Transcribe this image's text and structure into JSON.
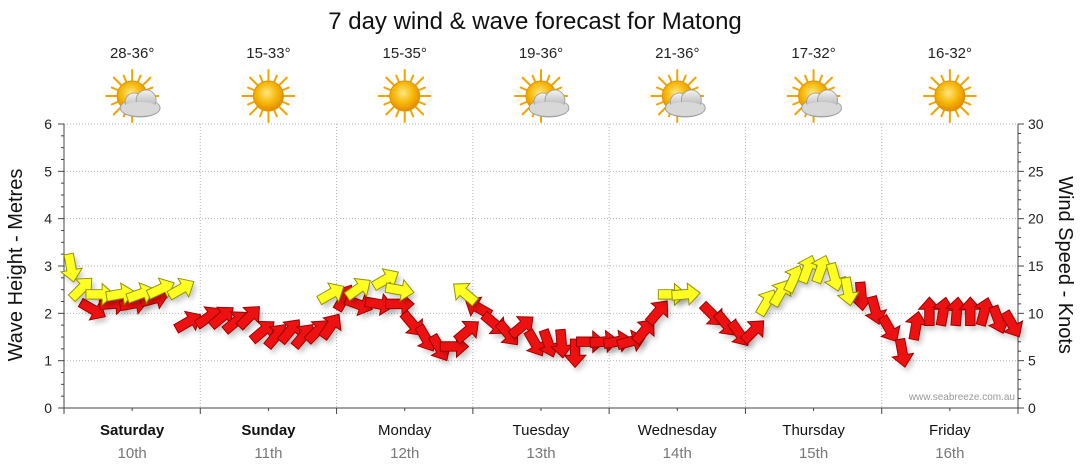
{
  "chart_data": {
    "type": "line",
    "title": "7 day wind & wave forecast for Matong",
    "ylabel_left": "Wave Height - Metres",
    "ylabel_right": "Wind Speed - Knots",
    "ylim_left": [
      0,
      6
    ],
    "ylim_right": [
      0,
      30
    ],
    "yticks_left": [
      "0",
      "1",
      "2",
      "3",
      "4",
      "5",
      "6"
    ],
    "yticks_right": [
      "0",
      "5",
      "10",
      "15",
      "20",
      "25",
      "30"
    ],
    "days": [
      {
        "day": "Saturday",
        "date": "10th",
        "temp": "28-36°",
        "weather": "partly-cloudy",
        "bold": true
      },
      {
        "day": "Sunday",
        "date": "11th",
        "temp": "15-33°",
        "weather": "sunny",
        "bold": true
      },
      {
        "day": "Monday",
        "date": "12th",
        "temp": "15-35°",
        "weather": "sunny",
        "bold": false
      },
      {
        "day": "Tuesday",
        "date": "13th",
        "temp": "19-36°",
        "weather": "partly-cloudy",
        "bold": false
      },
      {
        "day": "Wednesday",
        "date": "14th",
        "temp": "21-36°",
        "weather": "partly-cloudy",
        "bold": false
      },
      {
        "day": "Thursday",
        "date": "15th",
        "temp": "17-32°",
        "weather": "partly-cloudy",
        "bold": false
      },
      {
        "day": "Friday",
        "date": "16th",
        "temp": "16-32°",
        "weather": "sunny",
        "bold": false
      }
    ],
    "series": [
      {
        "name": "Wind Speed - Knots",
        "axis": "right",
        "note": "arrows: t in days from start, speed in knots, dir = compass bearing wind blows toward (deg), color by strength",
        "points": [
          {
            "t": 0.05,
            "speed": 15,
            "dir": 170,
            "color": "yellow"
          },
          {
            "t": 0.12,
            "speed": 12.5,
            "dir": 45,
            "color": "yellow"
          },
          {
            "t": 0.25,
            "speed": 12,
            "dir": 90,
            "color": "yellow"
          },
          {
            "t": 0.4,
            "speed": 12,
            "dir": 80,
            "color": "yellow"
          },
          {
            "t": 0.55,
            "speed": 12,
            "dir": 70,
            "color": "yellow"
          },
          {
            "t": 0.7,
            "speed": 12.5,
            "dir": 65,
            "color": "yellow"
          },
          {
            "t": 0.85,
            "speed": 12.5,
            "dir": 60,
            "color": "yellow"
          },
          {
            "t": 0.2,
            "speed": 10.5,
            "dir": 120,
            "color": "red"
          },
          {
            "t": 0.35,
            "speed": 11,
            "dir": 85,
            "color": "red"
          },
          {
            "t": 0.5,
            "speed": 11,
            "dir": 80,
            "color": "red"
          },
          {
            "t": 0.65,
            "speed": 11.5,
            "dir": 75,
            "color": "red"
          },
          {
            "t": 0.9,
            "speed": 9,
            "dir": 60,
            "color": "red"
          },
          {
            "t": 1.05,
            "speed": 9.5,
            "dir": 55,
            "color": "red"
          },
          {
            "t": 1.15,
            "speed": 9.5,
            "dir": 50,
            "color": "red"
          },
          {
            "t": 1.25,
            "speed": 9,
            "dir": 50,
            "color": "red"
          },
          {
            "t": 1.35,
            "speed": 9.5,
            "dir": 45,
            "color": "red"
          },
          {
            "t": 1.45,
            "speed": 8,
            "dir": 50,
            "color": "red"
          },
          {
            "t": 1.55,
            "speed": 7.5,
            "dir": 40,
            "color": "red"
          },
          {
            "t": 1.65,
            "speed": 8,
            "dir": 40,
            "color": "red"
          },
          {
            "t": 1.75,
            "speed": 7.5,
            "dir": 40,
            "color": "red"
          },
          {
            "t": 1.85,
            "speed": 8,
            "dir": 45,
            "color": "red"
          },
          {
            "t": 1.95,
            "speed": 8.5,
            "dir": 35,
            "color": "red"
          },
          {
            "t": 2.05,
            "speed": 11.5,
            "dir": 30,
            "color": "red"
          },
          {
            "t": 1.95,
            "speed": 12,
            "dir": 60,
            "color": "yellow"
          },
          {
            "t": 2.15,
            "speed": 12.5,
            "dir": 55,
            "color": "yellow"
          },
          {
            "t": 2.35,
            "speed": 13.5,
            "dir": 60,
            "color": "yellow"
          },
          {
            "t": 2.45,
            "speed": 12.5,
            "dir": 100,
            "color": "yellow"
          },
          {
            "t": 2.15,
            "speed": 11,
            "dir": 110,
            "color": "red"
          },
          {
            "t": 2.3,
            "speed": 11,
            "dir": 100,
            "color": "red"
          },
          {
            "t": 2.45,
            "speed": 11,
            "dir": 90,
            "color": "red"
          },
          {
            "t": 2.55,
            "speed": 9,
            "dir": 140,
            "color": "red"
          },
          {
            "t": 2.65,
            "speed": 7.5,
            "dir": 150,
            "color": "red"
          },
          {
            "t": 2.75,
            "speed": 6.5,
            "dir": 150,
            "color": "red"
          },
          {
            "t": 2.85,
            "speed": 6.5,
            "dir": 90,
            "color": "red"
          },
          {
            "t": 2.95,
            "speed": 8,
            "dir": 50,
            "color": "red"
          },
          {
            "t": 3.05,
            "speed": 10.5,
            "dir": 300,
            "color": "red"
          },
          {
            "t": 2.95,
            "speed": 12,
            "dir": 310,
            "color": "yellow"
          },
          {
            "t": 3.15,
            "speed": 9,
            "dir": 130,
            "color": "red"
          },
          {
            "t": 3.25,
            "speed": 8,
            "dir": 140,
            "color": "red"
          },
          {
            "t": 3.35,
            "speed": 8.5,
            "dir": 50,
            "color": "red"
          },
          {
            "t": 3.45,
            "speed": 7,
            "dir": 150,
            "color": "red"
          },
          {
            "t": 3.55,
            "speed": 7,
            "dir": 160,
            "color": "red"
          },
          {
            "t": 3.65,
            "speed": 7,
            "dir": 175,
            "color": "red"
          },
          {
            "t": 3.75,
            "speed": 6,
            "dir": 180,
            "color": "red"
          },
          {
            "t": 3.85,
            "speed": 7,
            "dir": 90,
            "color": "red"
          },
          {
            "t": 3.95,
            "speed": 7,
            "dir": 85,
            "color": "red"
          },
          {
            "t": 4.05,
            "speed": 7,
            "dir": 80,
            "color": "red"
          },
          {
            "t": 4.15,
            "speed": 7,
            "dir": 75,
            "color": "red"
          },
          {
            "t": 4.25,
            "speed": 8,
            "dir": 40,
            "color": "red"
          },
          {
            "t": 4.35,
            "speed": 10,
            "dir": 40,
            "color": "red"
          },
          {
            "t": 4.45,
            "speed": 12,
            "dir": 90,
            "color": "yellow"
          },
          {
            "t": 4.55,
            "speed": 12,
            "dir": 85,
            "color": "yellow"
          },
          {
            "t": 4.75,
            "speed": 10,
            "dir": 135,
            "color": "red"
          },
          {
            "t": 4.85,
            "speed": 9,
            "dir": 140,
            "color": "red"
          },
          {
            "t": 4.95,
            "speed": 8,
            "dir": 145,
            "color": "red"
          },
          {
            "t": 5.05,
            "speed": 8,
            "dir": 45,
            "color": "red"
          },
          {
            "t": 5.15,
            "speed": 11,
            "dir": 30,
            "color": "yellow"
          },
          {
            "t": 5.25,
            "speed": 12,
            "dir": 30,
            "color": "yellow"
          },
          {
            "t": 5.35,
            "speed": 13.5,
            "dir": 25,
            "color": "yellow"
          },
          {
            "t": 5.45,
            "speed": 14.5,
            "dir": 20,
            "color": "yellow"
          },
          {
            "t": 5.55,
            "speed": 14.5,
            "dir": 20,
            "color": "yellow"
          },
          {
            "t": 5.65,
            "speed": 14,
            "dir": 165,
            "color": "yellow"
          },
          {
            "t": 5.75,
            "speed": 12.5,
            "dir": 170,
            "color": "yellow"
          },
          {
            "t": 5.85,
            "speed": 12,
            "dir": 175,
            "color": "red"
          },
          {
            "t": 5.95,
            "speed": 10.5,
            "dir": 165,
            "color": "red"
          },
          {
            "t": 6.05,
            "speed": 8.5,
            "dir": 150,
            "color": "red"
          },
          {
            "t": 6.15,
            "speed": 6,
            "dir": 170,
            "color": "red"
          },
          {
            "t": 6.25,
            "speed": 8.5,
            "dir": 10,
            "color": "red"
          },
          {
            "t": 6.35,
            "speed": 10,
            "dir": 0,
            "color": "red"
          },
          {
            "t": 6.45,
            "speed": 10,
            "dir": 10,
            "color": "red"
          },
          {
            "t": 6.55,
            "speed": 10,
            "dir": 5,
            "color": "red"
          },
          {
            "t": 6.65,
            "speed": 10,
            "dir": 0,
            "color": "red"
          },
          {
            "t": 6.75,
            "speed": 10,
            "dir": 15,
            "color": "red"
          },
          {
            "t": 6.85,
            "speed": 9.5,
            "dir": 160,
            "color": "red"
          },
          {
            "t": 6.95,
            "speed": 9,
            "dir": 150,
            "color": "red"
          }
        ]
      }
    ]
  },
  "credit": "www.seabreeze.com.au"
}
